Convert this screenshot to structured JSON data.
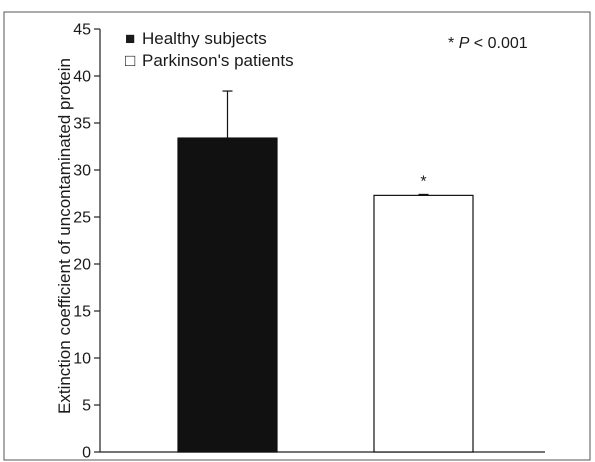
{
  "chart_data": {
    "type": "bar",
    "title": "",
    "xlabel": "",
    "ylabel": "Extinction coefficient of uncontaminated protein",
    "ylim": [
      0,
      45
    ],
    "yticks": [
      "0",
      "5",
      "10",
      "15",
      "20",
      "25",
      "30",
      "35",
      "40",
      "45"
    ],
    "grid": false,
    "legend_position": "top-left",
    "series": [
      {
        "name": "Healthy subjects",
        "value": 33.4,
        "error": 5.0,
        "color": "#111111",
        "marker": "■"
      },
      {
        "name": "Parkinson's patients",
        "value": 27.3,
        "error": 0.1,
        "color": "#ffffff",
        "marker": "□"
      }
    ],
    "significance_marks": [
      "",
      "*"
    ],
    "annotation": {
      "star": "*",
      "text": "P",
      "rest": " < 0.001"
    }
  }
}
